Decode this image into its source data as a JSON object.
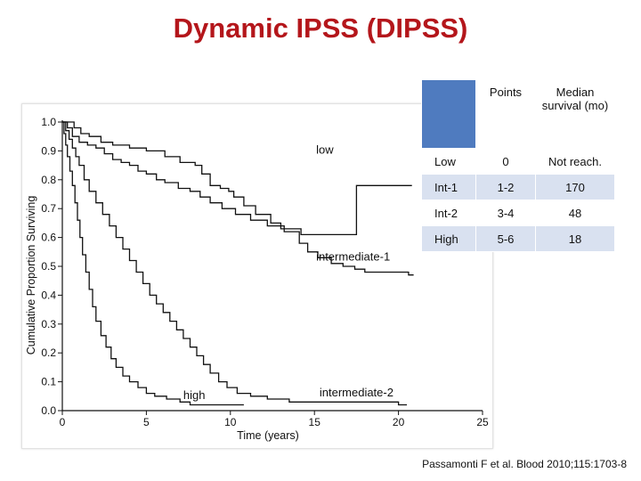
{
  "slide": {
    "title": "Dynamic IPSS (DIPSS)",
    "citation": "Passamonti F et al. Blood 2010;115:1703-8"
  },
  "table": {
    "headers": [
      "",
      "Points",
      "Median survival (mo)"
    ],
    "rows": [
      {
        "category": "Low",
        "points": "0",
        "median": "Not reach."
      },
      {
        "category": "Int-1",
        "points": "1-2",
        "median": "170"
      },
      {
        "category": "Int-2",
        "points": "3-4",
        "median": "48"
      },
      {
        "category": "High",
        "points": "5-6",
        "median": "18"
      }
    ],
    "colors": {
      "corner": "#4f7bbf",
      "band": "#d9e1f0"
    }
  },
  "chart_data": {
    "type": "line",
    "step": true,
    "title": "",
    "xlabel": "Time (years)",
    "ylabel": "Cumulative Proportion Surviving",
    "xlim": [
      0,
      25
    ],
    "ylim": [
      0,
      1.0
    ],
    "xticks": [
      0,
      5,
      10,
      15,
      20,
      25
    ],
    "yticks": [
      0.0,
      0.1,
      0.2,
      0.3,
      0.4,
      0.5,
      0.6,
      0.7,
      0.8,
      0.9,
      1.0
    ],
    "grid": false,
    "line_color": "#111111",
    "series": [
      {
        "name": "low",
        "label_at": [
          15.1,
          0.89
        ],
        "points": [
          [
            0,
            1.0
          ],
          [
            0.7,
            1.0
          ],
          [
            0.7,
            0.98
          ],
          [
            1.1,
            0.98
          ],
          [
            1.1,
            0.96
          ],
          [
            1.6,
            0.96
          ],
          [
            1.6,
            0.95
          ],
          [
            2.3,
            0.95
          ],
          [
            2.3,
            0.93
          ],
          [
            3.0,
            0.93
          ],
          [
            3.0,
            0.92
          ],
          [
            4.0,
            0.92
          ],
          [
            4.0,
            0.91
          ],
          [
            5.0,
            0.91
          ],
          [
            5.0,
            0.9
          ],
          [
            6.1,
            0.9
          ],
          [
            6.1,
            0.88
          ],
          [
            7.0,
            0.88
          ],
          [
            7.0,
            0.86
          ],
          [
            7.9,
            0.86
          ],
          [
            7.9,
            0.85
          ],
          [
            8.3,
            0.85
          ],
          [
            8.3,
            0.82
          ],
          [
            8.8,
            0.82
          ],
          [
            8.8,
            0.78
          ],
          [
            9.4,
            0.78
          ],
          [
            9.4,
            0.77
          ],
          [
            9.9,
            0.77
          ],
          [
            9.9,
            0.76
          ],
          [
            10.2,
            0.76
          ],
          [
            10.2,
            0.74
          ],
          [
            10.8,
            0.74
          ],
          [
            10.8,
            0.71
          ],
          [
            11.5,
            0.71
          ],
          [
            11.5,
            0.68
          ],
          [
            12.4,
            0.68
          ],
          [
            12.4,
            0.65
          ],
          [
            13.0,
            0.65
          ],
          [
            13.0,
            0.63
          ],
          [
            14.2,
            0.63
          ],
          [
            14.2,
            0.61
          ],
          [
            17.5,
            0.61
          ],
          [
            17.5,
            0.78
          ],
          [
            20.8,
            0.78
          ]
        ]
      },
      {
        "name": "intermediate-1",
        "label_at": [
          15.1,
          0.52
        ],
        "points": [
          [
            0,
            1.0
          ],
          [
            0.3,
            1.0
          ],
          [
            0.3,
            0.98
          ],
          [
            0.6,
            0.98
          ],
          [
            0.6,
            0.95
          ],
          [
            1.0,
            0.95
          ],
          [
            1.0,
            0.93
          ],
          [
            1.5,
            0.93
          ],
          [
            1.5,
            0.92
          ],
          [
            2.0,
            0.92
          ],
          [
            2.0,
            0.91
          ],
          [
            2.5,
            0.91
          ],
          [
            2.5,
            0.89
          ],
          [
            3.0,
            0.89
          ],
          [
            3.0,
            0.87
          ],
          [
            3.5,
            0.87
          ],
          [
            3.5,
            0.86
          ],
          [
            4.0,
            0.86
          ],
          [
            4.0,
            0.85
          ],
          [
            4.5,
            0.85
          ],
          [
            4.5,
            0.83
          ],
          [
            5.0,
            0.83
          ],
          [
            5.0,
            0.82
          ],
          [
            5.6,
            0.82
          ],
          [
            5.6,
            0.8
          ],
          [
            6.1,
            0.8
          ],
          [
            6.1,
            0.79
          ],
          [
            6.9,
            0.79
          ],
          [
            6.9,
            0.77
          ],
          [
            7.6,
            0.77
          ],
          [
            7.6,
            0.76
          ],
          [
            8.2,
            0.76
          ],
          [
            8.2,
            0.74
          ],
          [
            8.8,
            0.74
          ],
          [
            8.8,
            0.72
          ],
          [
            9.5,
            0.72
          ],
          [
            9.5,
            0.7
          ],
          [
            10.3,
            0.7
          ],
          [
            10.3,
            0.68
          ],
          [
            11.2,
            0.68
          ],
          [
            11.2,
            0.66
          ],
          [
            12.2,
            0.66
          ],
          [
            12.2,
            0.64
          ],
          [
            13.2,
            0.64
          ],
          [
            13.2,
            0.62
          ],
          [
            14.1,
            0.62
          ],
          [
            14.1,
            0.58
          ],
          [
            14.6,
            0.58
          ],
          [
            14.6,
            0.55
          ],
          [
            15.2,
            0.55
          ],
          [
            15.2,
            0.53
          ],
          [
            16.0,
            0.53
          ],
          [
            16.0,
            0.51
          ],
          [
            16.7,
            0.51
          ],
          [
            16.7,
            0.5
          ],
          [
            17.4,
            0.5
          ],
          [
            17.4,
            0.49
          ],
          [
            18.0,
            0.49
          ],
          [
            18.0,
            0.48
          ],
          [
            20.6,
            0.48
          ],
          [
            20.6,
            0.47
          ],
          [
            20.9,
            0.47
          ]
        ]
      },
      {
        "name": "intermediate-2",
        "label_at": [
          15.3,
          0.05
        ],
        "points": [
          [
            0,
            1.0
          ],
          [
            0.2,
            1.0
          ],
          [
            0.2,
            0.97
          ],
          [
            0.4,
            0.97
          ],
          [
            0.4,
            0.94
          ],
          [
            0.6,
            0.94
          ],
          [
            0.6,
            0.91
          ],
          [
            0.8,
            0.91
          ],
          [
            0.8,
            0.88
          ],
          [
            1.0,
            0.88
          ],
          [
            1.0,
            0.85
          ],
          [
            1.3,
            0.85
          ],
          [
            1.3,
            0.8
          ],
          [
            1.6,
            0.8
          ],
          [
            1.6,
            0.76
          ],
          [
            2.0,
            0.76
          ],
          [
            2.0,
            0.72
          ],
          [
            2.4,
            0.72
          ],
          [
            2.4,
            0.68
          ],
          [
            2.8,
            0.68
          ],
          [
            2.8,
            0.64
          ],
          [
            3.2,
            0.64
          ],
          [
            3.2,
            0.6
          ],
          [
            3.6,
            0.6
          ],
          [
            3.6,
            0.56
          ],
          [
            4.0,
            0.56
          ],
          [
            4.0,
            0.52
          ],
          [
            4.4,
            0.52
          ],
          [
            4.4,
            0.48
          ],
          [
            4.8,
            0.48
          ],
          [
            4.8,
            0.44
          ],
          [
            5.2,
            0.44
          ],
          [
            5.2,
            0.4
          ],
          [
            5.6,
            0.4
          ],
          [
            5.6,
            0.37
          ],
          [
            6.0,
            0.37
          ],
          [
            6.0,
            0.34
          ],
          [
            6.4,
            0.34
          ],
          [
            6.4,
            0.31
          ],
          [
            6.8,
            0.31
          ],
          [
            6.8,
            0.28
          ],
          [
            7.2,
            0.28
          ],
          [
            7.2,
            0.25
          ],
          [
            7.6,
            0.25
          ],
          [
            7.6,
            0.22
          ],
          [
            8.0,
            0.22
          ],
          [
            8.0,
            0.19
          ],
          [
            8.4,
            0.19
          ],
          [
            8.4,
            0.16
          ],
          [
            8.8,
            0.16
          ],
          [
            8.8,
            0.13
          ],
          [
            9.3,
            0.13
          ],
          [
            9.3,
            0.1
          ],
          [
            9.8,
            0.1
          ],
          [
            9.8,
            0.08
          ],
          [
            10.4,
            0.08
          ],
          [
            10.4,
            0.06
          ],
          [
            11.2,
            0.06
          ],
          [
            11.2,
            0.05
          ],
          [
            12.2,
            0.05
          ],
          [
            12.2,
            0.04
          ],
          [
            13.5,
            0.04
          ],
          [
            13.5,
            0.03
          ],
          [
            20.0,
            0.03
          ],
          [
            20.0,
            0.02
          ],
          [
            20.5,
            0.02
          ]
        ]
      },
      {
        "name": "high",
        "label_at": [
          7.2,
          0.04
        ],
        "points": [
          [
            0,
            1.0
          ],
          [
            0.1,
            1.0
          ],
          [
            0.1,
            0.96
          ],
          [
            0.2,
            0.96
          ],
          [
            0.2,
            0.92
          ],
          [
            0.3,
            0.92
          ],
          [
            0.3,
            0.88
          ],
          [
            0.45,
            0.88
          ],
          [
            0.45,
            0.83
          ],
          [
            0.6,
            0.83
          ],
          [
            0.6,
            0.78
          ],
          [
            0.75,
            0.78
          ],
          [
            0.75,
            0.72
          ],
          [
            0.9,
            0.72
          ],
          [
            0.9,
            0.66
          ],
          [
            1.05,
            0.66
          ],
          [
            1.05,
            0.6
          ],
          [
            1.2,
            0.6
          ],
          [
            1.2,
            0.54
          ],
          [
            1.4,
            0.54
          ],
          [
            1.4,
            0.48
          ],
          [
            1.6,
            0.48
          ],
          [
            1.6,
            0.42
          ],
          [
            1.8,
            0.42
          ],
          [
            1.8,
            0.36
          ],
          [
            2.0,
            0.36
          ],
          [
            2.0,
            0.31
          ],
          [
            2.3,
            0.31
          ],
          [
            2.3,
            0.26
          ],
          [
            2.6,
            0.26
          ],
          [
            2.6,
            0.22
          ],
          [
            2.9,
            0.22
          ],
          [
            2.9,
            0.18
          ],
          [
            3.2,
            0.18
          ],
          [
            3.2,
            0.15
          ],
          [
            3.6,
            0.15
          ],
          [
            3.6,
            0.12
          ],
          [
            4.0,
            0.12
          ],
          [
            4.0,
            0.1
          ],
          [
            4.5,
            0.1
          ],
          [
            4.5,
            0.08
          ],
          [
            5.0,
            0.08
          ],
          [
            5.0,
            0.06
          ],
          [
            5.5,
            0.06
          ],
          [
            5.5,
            0.05
          ],
          [
            6.2,
            0.05
          ],
          [
            6.2,
            0.04
          ],
          [
            7.0,
            0.04
          ],
          [
            7.0,
            0.03
          ],
          [
            7.6,
            0.03
          ],
          [
            7.6,
            0.02
          ],
          [
            10.8,
            0.02
          ]
        ]
      }
    ]
  }
}
